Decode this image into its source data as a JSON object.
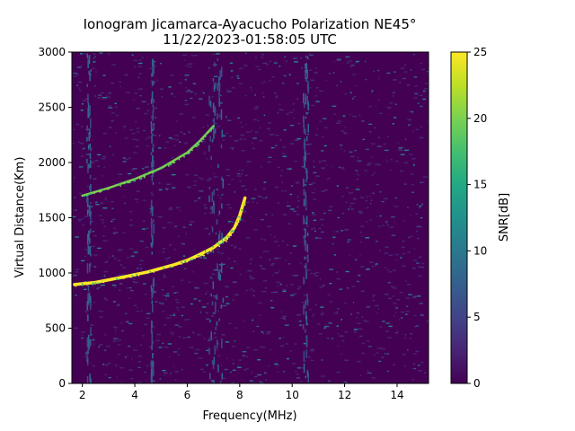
{
  "chart_data": {
    "type": "heatmap",
    "title_line1": "Ionogram Jicamarca-Ayacucho Polarization NE45°",
    "title_line2": "11/22/2023-01:58:05 UTC",
    "xlabel": "Frequency(MHz)",
    "ylabel": "Virtual Distance(Km)",
    "xlim": [
      1.6,
      15.2
    ],
    "ylim": [
      0,
      3000
    ],
    "xticks": [
      2,
      4,
      6,
      8,
      10,
      12,
      14
    ],
    "yticks": [
      0,
      500,
      1000,
      1500,
      2000,
      2500,
      3000
    ],
    "colorbar": {
      "label": "SNR[dB]",
      "range": [
        0,
        25
      ],
      "ticks": [
        0,
        5,
        10,
        15,
        20,
        25
      ],
      "colormap": "viridis"
    },
    "traces": [
      {
        "description": "primary echo",
        "points": [
          [
            1.7,
            895
          ],
          [
            2.5,
            915
          ],
          [
            3.5,
            960
          ],
          [
            4.5,
            1010
          ],
          [
            5.5,
            1075
          ],
          [
            6.0,
            1115
          ],
          [
            6.5,
            1170
          ],
          [
            7.0,
            1230
          ],
          [
            7.5,
            1320
          ],
          [
            7.8,
            1410
          ],
          [
            8.0,
            1520
          ],
          [
            8.2,
            1680
          ]
        ],
        "snr": 25
      },
      {
        "description": "second-hop echo",
        "points": [
          [
            2.0,
            1700
          ],
          [
            3.0,
            1770
          ],
          [
            4.0,
            1850
          ],
          [
            5.0,
            1950
          ],
          [
            6.0,
            2090
          ],
          [
            6.5,
            2200
          ],
          [
            7.0,
            2330
          ]
        ],
        "snr": 21
      }
    ],
    "interference_bands_mhz": [
      [
        2.15,
        2.3
      ],
      [
        4.6,
        4.7
      ],
      [
        6.8,
        7.35
      ],
      [
        10.4,
        10.6
      ]
    ],
    "colors": {
      "background_low": "#440154",
      "high": "#fde725",
      "mid": "#21918c"
    }
  }
}
